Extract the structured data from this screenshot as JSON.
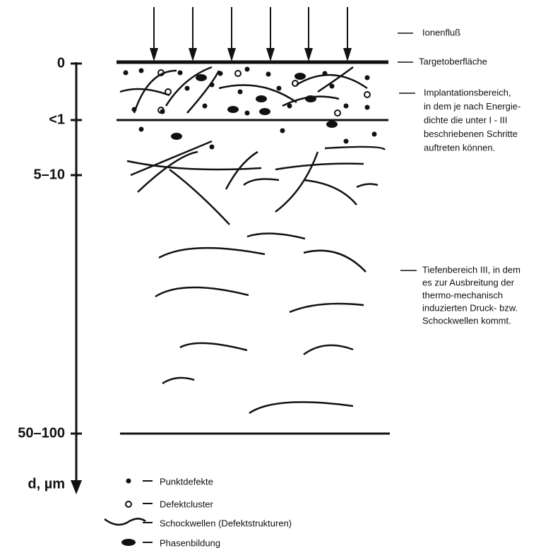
{
  "depth_axis": {
    "labels": [
      "0",
      "<1",
      "5–10",
      "50–100"
    ],
    "unit": "d, µm"
  },
  "annotations": [
    {
      "lines": [
        "Ionenfluß"
      ]
    },
    {
      "lines": [
        "Targetoberfläche"
      ]
    },
    {
      "lines": [
        "Implantationsbereich,",
        "in dem je nach Energie-",
        "dichte die unter I - III",
        "beschriebenen Schritte",
        "auftreten können."
      ]
    },
    {
      "lines": [
        "Tiefenbereich III, in dem",
        "es zur Ausbreitung der",
        "thermo-mechanisch",
        "induzierten Druck- bzw.",
        "Schockwellen kommt."
      ]
    }
  ],
  "legend": [
    "Punktdefekte",
    "Defektcluster",
    "Schockwellen (Defektstrukturen)",
    "Phasenbildung"
  ]
}
